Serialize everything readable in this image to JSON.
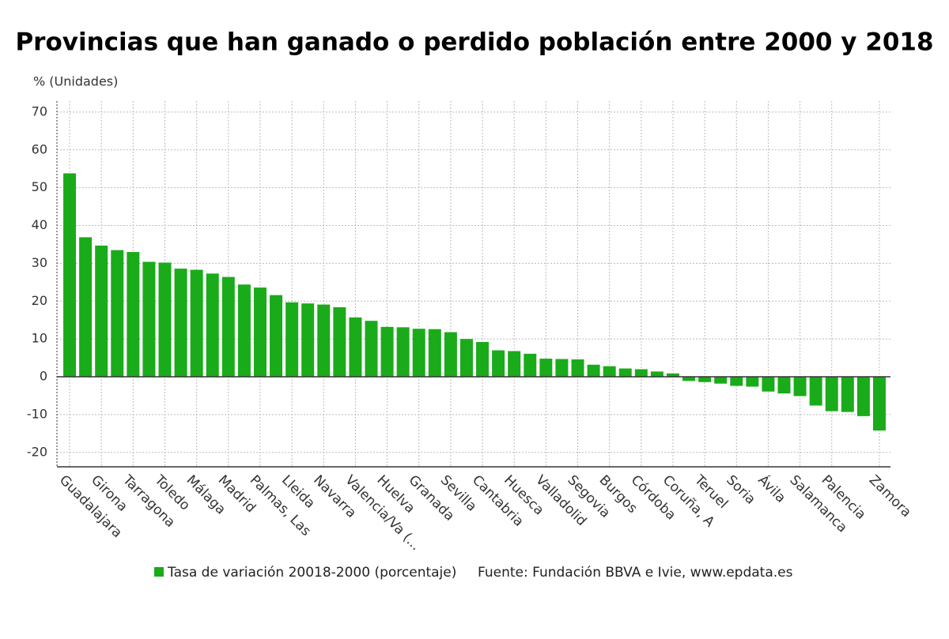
{
  "chart_data": {
    "type": "bar",
    "title": "Provincias que han ganado o perdido población entre 2000 y 2018",
    "y_label": "% (Unidades)",
    "categories": [
      "Guadalajara",
      null,
      "Girona",
      null,
      "Tarragona",
      null,
      "Toledo",
      null,
      "Málaga",
      null,
      "Madrid",
      null,
      "Palmas, Las",
      null,
      "Lleida",
      null,
      "Navarra",
      null,
      "Valencia/Va (...",
      null,
      "Huelva",
      null,
      "Granada",
      null,
      "Sevilla",
      null,
      "Cantabria",
      null,
      "Huesca",
      null,
      "Valladolid",
      null,
      "Segovia",
      null,
      "Burgos",
      null,
      "Córdoba",
      null,
      "Coruña, A",
      null,
      "Teruel",
      null,
      "Soria",
      null,
      "Ávila",
      null,
      "Salamanca",
      null,
      "Palencia",
      null,
      null,
      "Zamora"
    ],
    "series": [
      {
        "name": "Tasa de variación 20018-2000 (porcentaje)",
        "color": "#1aab1a",
        "values": [
          53.8,
          36.9,
          34.7,
          33.5,
          33.0,
          30.4,
          30.2,
          28.6,
          28.3,
          27.3,
          26.4,
          24.4,
          23.6,
          21.6,
          19.7,
          19.4,
          19.1,
          18.4,
          15.7,
          14.8,
          13.2,
          13.1,
          12.7,
          12.6,
          11.8,
          10.0,
          9.2,
          7.0,
          6.8,
          6.1,
          4.8,
          4.7,
          4.6,
          3.2,
          2.8,
          2.2,
          2.0,
          1.4,
          0.9,
          -1.1,
          -1.4,
          -1.8,
          -2.4,
          -2.6,
          -3.9,
          -4.4,
          -5.1,
          -7.6,
          -9.1,
          -9.3,
          -10.4,
          -14.2
        ]
      }
    ],
    "source": "Fuente: Fundación BBVA e Ivie, www.epdata.es",
    "ylim": [
      -23.8,
      72.9
    ],
    "yticks": [
      -20,
      -10,
      0,
      10,
      20,
      30,
      40,
      50,
      60,
      70
    ],
    "grid": true
  }
}
